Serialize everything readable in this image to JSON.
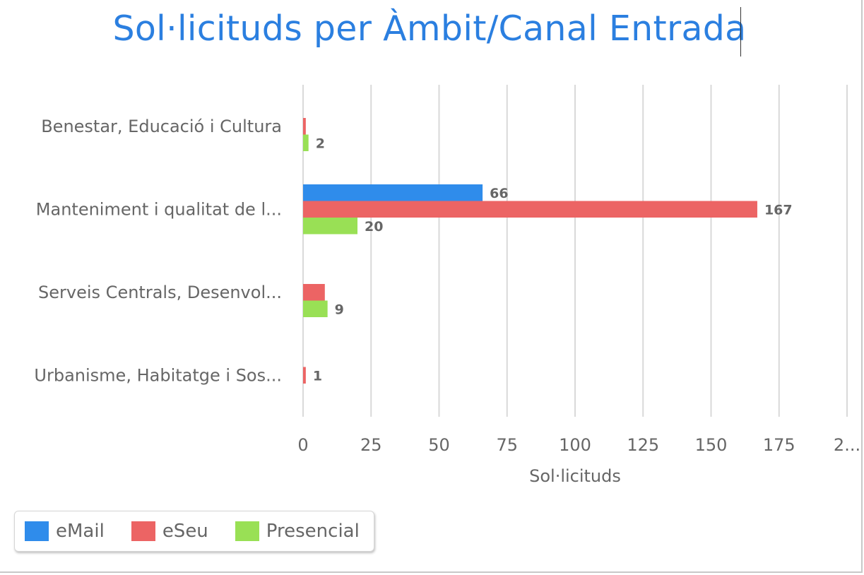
{
  "chart_data": {
    "type": "bar",
    "orientation": "horizontal",
    "title": "Sol·licituds per Àmbit/Canal Entrada",
    "xlabel": "Sol·licituds",
    "ylabel": "",
    "categories": [
      "Benestar, Educació i Cultura",
      "Manteniment i qualitat de l...",
      "Serveis Centrals, Desenvol...",
      "Urbanisme, Habitatge i Sos..."
    ],
    "series": [
      {
        "name": "eMail",
        "color": "#2f8ceb",
        "values": [
          0,
          66,
          0,
          0
        ],
        "labels": [
          "",
          "66",
          "",
          ""
        ]
      },
      {
        "name": "eSeu",
        "color": "#ec6464",
        "values": [
          1,
          167,
          8,
          1
        ],
        "labels": [
          "",
          "167",
          "",
          "1"
        ]
      },
      {
        "name": "Presencial",
        "color": "#99e055",
        "values": [
          2,
          20,
          9,
          0
        ],
        "labels": [
          "2",
          "20",
          "9",
          ""
        ]
      }
    ],
    "xlim": [
      0,
      200
    ],
    "ticks": [
      "0",
      "25",
      "50",
      "75",
      "100",
      "125",
      "150",
      "175",
      "2..."
    ],
    "grid": true,
    "legend_position": "bottom-left"
  }
}
